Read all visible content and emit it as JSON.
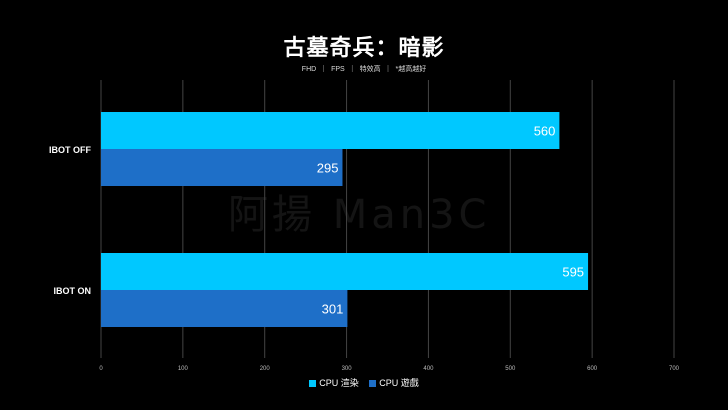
{
  "title": "古墓奇兵：暗影",
  "subtitle": "FHD ｜ FPS ｜ 特效高 ｜ *越高越好",
  "watermark": "阿揚 Man3C",
  "chart_data": {
    "type": "bar",
    "orientation": "horizontal",
    "categories": [
      "IBOT OFF",
      "IBOT ON"
    ],
    "series": [
      {
        "name": "CPU 渲染",
        "values": [
          560,
          595
        ],
        "color": "#00c8ff"
      },
      {
        "name": "CPU 遊戲",
        "values": [
          295,
          301
        ],
        "color": "#1e6fc8"
      }
    ],
    "xlim": [
      0,
      700
    ],
    "xticks": [
      0,
      100,
      200,
      300,
      400,
      500,
      600,
      700
    ],
    "grid": true,
    "legend_position": "bottom"
  }
}
